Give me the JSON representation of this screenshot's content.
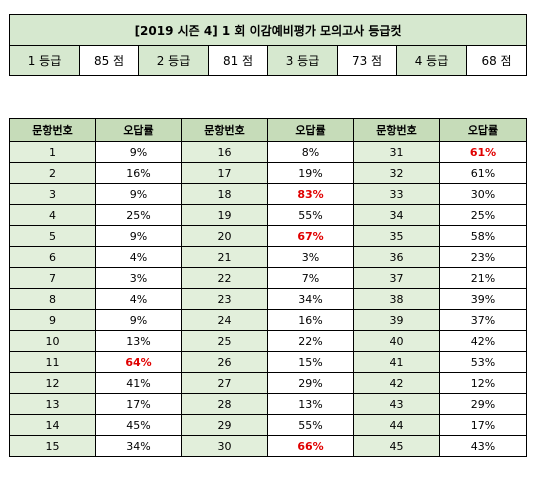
{
  "title": "[2019 시즌 4] 1 회  이감예비평가  모의고사  등급컷",
  "grades": [
    {
      "grade": "1 등급",
      "score": "85 점"
    },
    {
      "grade": "2 등급",
      "score": "81 점"
    },
    {
      "grade": "3 등급",
      "score": "73 점"
    },
    {
      "grade": "4 등급",
      "score": "68 점"
    }
  ],
  "table_headers": {
    "number": "문항번호",
    "rate": "오답률"
  },
  "questions": [
    {
      "no": "1",
      "rate": "9%",
      "high": false
    },
    {
      "no": "2",
      "rate": "16%",
      "high": false
    },
    {
      "no": "3",
      "rate": "9%",
      "high": false
    },
    {
      "no": "4",
      "rate": "25%",
      "high": false
    },
    {
      "no": "5",
      "rate": "9%",
      "high": false
    },
    {
      "no": "6",
      "rate": "4%",
      "high": false
    },
    {
      "no": "7",
      "rate": "3%",
      "high": false
    },
    {
      "no": "8",
      "rate": "4%",
      "high": false
    },
    {
      "no": "9",
      "rate": "9%",
      "high": false
    },
    {
      "no": "10",
      "rate": "13%",
      "high": false
    },
    {
      "no": "11",
      "rate": "64%",
      "high": true
    },
    {
      "no": "12",
      "rate": "41%",
      "high": false
    },
    {
      "no": "13",
      "rate": "17%",
      "high": false
    },
    {
      "no": "14",
      "rate": "45%",
      "high": false
    },
    {
      "no": "15",
      "rate": "34%",
      "high": false
    },
    {
      "no": "16",
      "rate": "8%",
      "high": false
    },
    {
      "no": "17",
      "rate": "19%",
      "high": false
    },
    {
      "no": "18",
      "rate": "83%",
      "high": true
    },
    {
      "no": "19",
      "rate": "55%",
      "high": false
    },
    {
      "no": "20",
      "rate": "67%",
      "high": true
    },
    {
      "no": "21",
      "rate": "3%",
      "high": false
    },
    {
      "no": "22",
      "rate": "7%",
      "high": false
    },
    {
      "no": "23",
      "rate": "34%",
      "high": false
    },
    {
      "no": "24",
      "rate": "16%",
      "high": false
    },
    {
      "no": "25",
      "rate": "22%",
      "high": false
    },
    {
      "no": "26",
      "rate": "15%",
      "high": false
    },
    {
      "no": "27",
      "rate": "29%",
      "high": false
    },
    {
      "no": "28",
      "rate": "13%",
      "high": false
    },
    {
      "no": "29",
      "rate": "55%",
      "high": false
    },
    {
      "no": "30",
      "rate": "66%",
      "high": true
    },
    {
      "no": "31",
      "rate": "61%",
      "high": true
    },
    {
      "no": "32",
      "rate": "61%",
      "high": false
    },
    {
      "no": "33",
      "rate": "30%",
      "high": false
    },
    {
      "no": "34",
      "rate": "25%",
      "high": false
    },
    {
      "no": "35",
      "rate": "58%",
      "high": false
    },
    {
      "no": "36",
      "rate": "23%",
      "high": false
    },
    {
      "no": "37",
      "rate": "21%",
      "high": false
    },
    {
      "no": "38",
      "rate": "39%",
      "high": false
    },
    {
      "no": "39",
      "rate": "37%",
      "high": false
    },
    {
      "no": "40",
      "rate": "42%",
      "high": false
    },
    {
      "no": "41",
      "rate": "53%",
      "high": false
    },
    {
      "no": "42",
      "rate": "12%",
      "high": false
    },
    {
      "no": "43",
      "rate": "29%",
      "high": false
    },
    {
      "no": "44",
      "rate": "17%",
      "high": false
    },
    {
      "no": "45",
      "rate": "43%",
      "high": false
    }
  ],
  "colors": {
    "highlight": "#e00000",
    "header_green": "#c6dcb9",
    "cell_green": "#e2efdb",
    "banner_green": "#d6e8cf"
  }
}
